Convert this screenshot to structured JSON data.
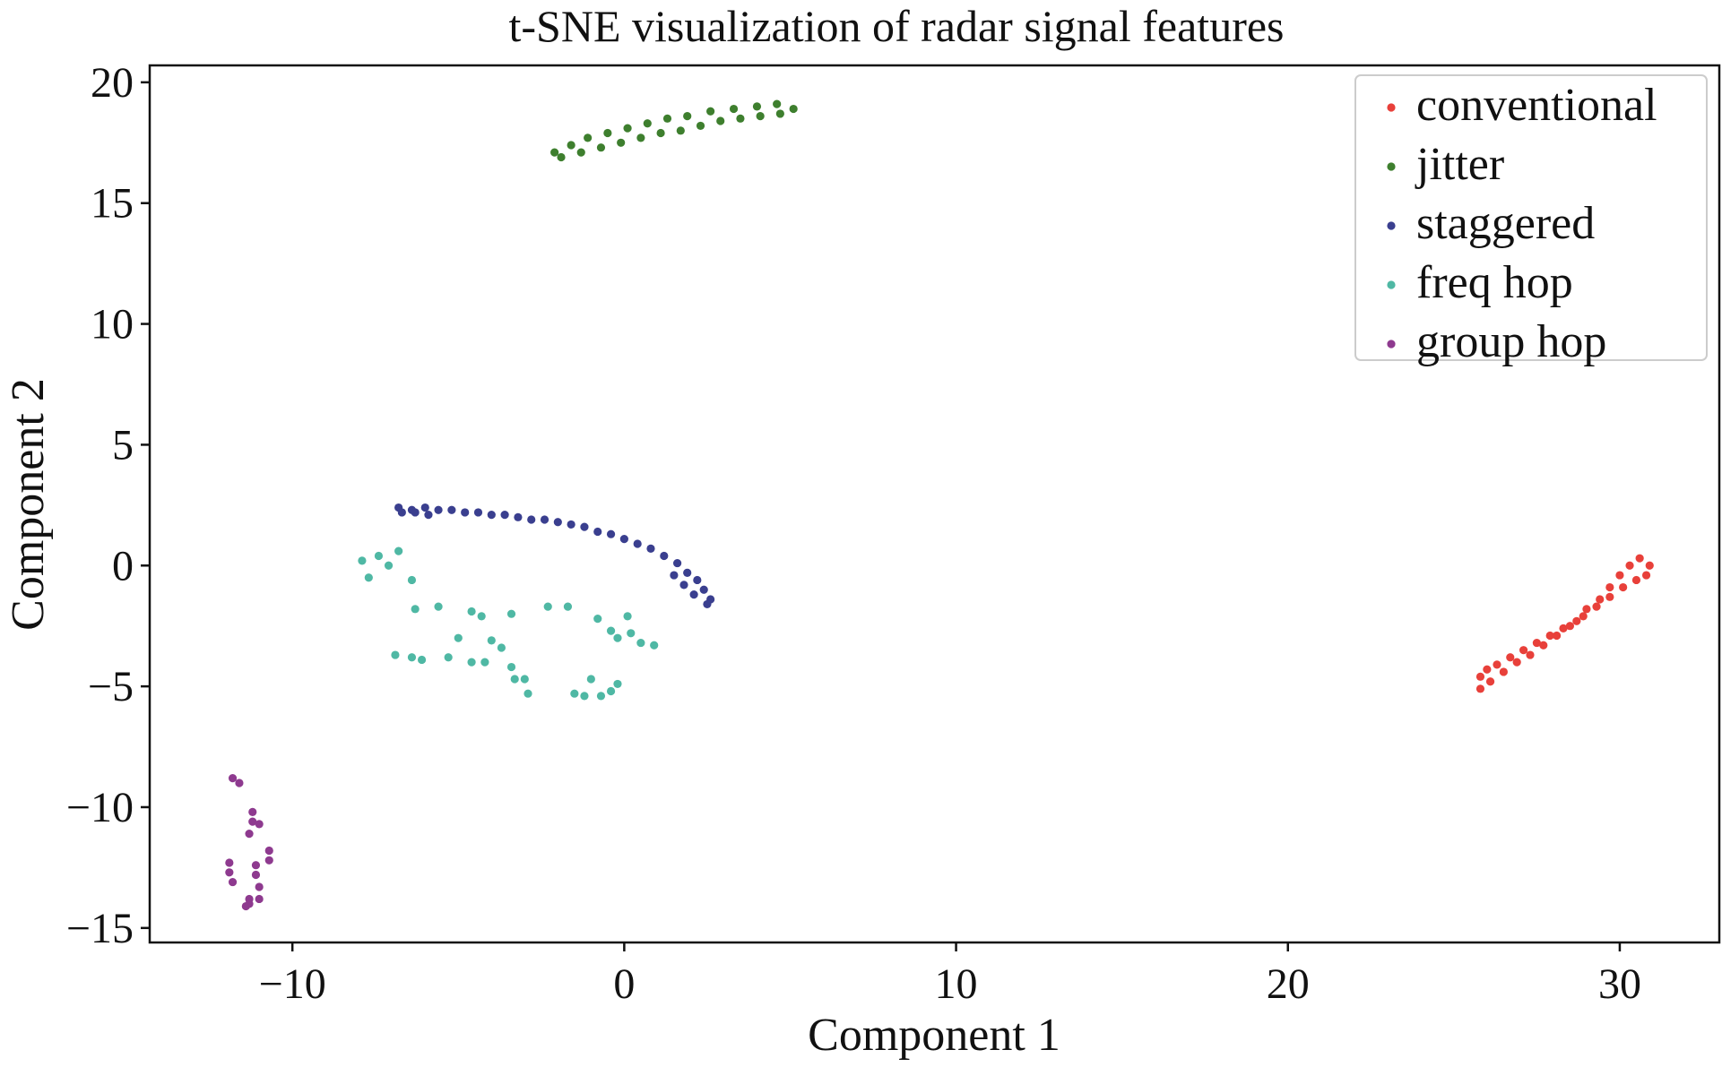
{
  "chart_data": {
    "type": "scatter",
    "title": "t-SNE visualization of radar signal features",
    "xlabel": "Component 1",
    "ylabel": "Component 2",
    "xlim": [
      -14.3,
      33
    ],
    "ylim": [
      -15.6,
      20.7
    ],
    "xticks": [
      -10,
      0,
      10,
      20,
      30
    ],
    "yticks": [
      -15,
      -10,
      -5,
      0,
      5,
      10,
      15,
      20
    ],
    "xtick_labels": [
      "−10",
      "0",
      "10",
      "20",
      "30"
    ],
    "ytick_labels": [
      "−15",
      "−10",
      "−5",
      "0",
      "5",
      "10",
      "15",
      "20"
    ],
    "grid": false,
    "legend_position": "top-right",
    "series": [
      {
        "name": "conventional",
        "color": "#e8403a",
        "points": [
          [
            25.8,
            -4.6
          ],
          [
            26.0,
            -4.3
          ],
          [
            26.3,
            -4.1
          ],
          [
            26.7,
            -3.8
          ],
          [
            27.1,
            -3.5
          ],
          [
            27.5,
            -3.2
          ],
          [
            27.9,
            -2.9
          ],
          [
            28.3,
            -2.6
          ],
          [
            28.7,
            -2.3
          ],
          [
            29.0,
            -1.8
          ],
          [
            29.4,
            -1.4
          ],
          [
            29.7,
            -0.9
          ],
          [
            30.0,
            -0.4
          ],
          [
            30.3,
            0.0
          ],
          [
            30.6,
            0.3
          ],
          [
            30.9,
            0.0
          ],
          [
            30.8,
            -0.4
          ],
          [
            30.5,
            -0.6
          ],
          [
            30.1,
            -0.9
          ],
          [
            29.7,
            -1.3
          ],
          [
            29.3,
            -1.7
          ],
          [
            28.9,
            -2.1
          ],
          [
            28.5,
            -2.5
          ],
          [
            28.1,
            -2.9
          ],
          [
            27.7,
            -3.3
          ],
          [
            27.3,
            -3.7
          ],
          [
            26.9,
            -4.0
          ],
          [
            26.5,
            -4.4
          ],
          [
            26.1,
            -4.8
          ],
          [
            25.8,
            -5.1
          ]
        ]
      },
      {
        "name": "jitter",
        "color": "#3e7f2e",
        "points": [
          [
            -2.1,
            17.1
          ],
          [
            -1.6,
            17.4
          ],
          [
            -1.1,
            17.7
          ],
          [
            -0.5,
            17.9
          ],
          [
            0.1,
            18.1
          ],
          [
            0.7,
            18.3
          ],
          [
            1.3,
            18.5
          ],
          [
            1.9,
            18.6
          ],
          [
            2.6,
            18.8
          ],
          [
            3.3,
            18.9
          ],
          [
            4.0,
            19.0
          ],
          [
            4.6,
            19.1
          ],
          [
            5.1,
            18.9
          ],
          [
            4.7,
            18.7
          ],
          [
            4.1,
            18.6
          ],
          [
            3.5,
            18.5
          ],
          [
            2.9,
            18.4
          ],
          [
            2.3,
            18.2
          ],
          [
            1.7,
            18.0
          ],
          [
            1.1,
            17.9
          ],
          [
            0.5,
            17.7
          ],
          [
            -0.1,
            17.5
          ],
          [
            -0.7,
            17.3
          ],
          [
            -1.3,
            17.1
          ],
          [
            -1.9,
            16.9
          ]
        ]
      },
      {
        "name": "staggered",
        "color": "#3a3f8f",
        "points": [
          [
            -6.8,
            2.4
          ],
          [
            -6.4,
            2.3
          ],
          [
            -6.0,
            2.4
          ],
          [
            -5.6,
            2.3
          ],
          [
            -5.2,
            2.3
          ],
          [
            -4.8,
            2.2
          ],
          [
            -4.4,
            2.2
          ],
          [
            -4.0,
            2.1
          ],
          [
            -3.6,
            2.1
          ],
          [
            -3.2,
            2.0
          ],
          [
            -2.8,
            1.9
          ],
          [
            -2.4,
            1.9
          ],
          [
            -2.0,
            1.8
          ],
          [
            -1.6,
            1.7
          ],
          [
            -1.2,
            1.6
          ],
          [
            -0.8,
            1.4
          ],
          [
            -0.4,
            1.3
          ],
          [
            0.0,
            1.1
          ],
          [
            0.4,
            0.9
          ],
          [
            0.8,
            0.7
          ],
          [
            1.2,
            0.4
          ],
          [
            1.6,
            0.1
          ],
          [
            1.9,
            -0.3
          ],
          [
            2.2,
            -0.6
          ],
          [
            2.4,
            -1.0
          ],
          [
            2.6,
            -1.4
          ],
          [
            2.5,
            -1.6
          ],
          [
            2.1,
            -1.2
          ],
          [
            1.8,
            -0.8
          ],
          [
            1.5,
            -0.4
          ],
          [
            -6.7,
            2.2
          ],
          [
            -6.3,
            2.2
          ],
          [
            -5.9,
            2.1
          ]
        ]
      },
      {
        "name": "freq hop",
        "color": "#4fb8a4",
        "points": [
          [
            -7.9,
            0.2
          ],
          [
            -7.7,
            -0.5
          ],
          [
            -7.4,
            0.4
          ],
          [
            -7.1,
            0.0
          ],
          [
            -6.8,
            0.6
          ],
          [
            -6.4,
            -0.6
          ],
          [
            -6.3,
            -1.8
          ],
          [
            -5.6,
            -1.7
          ],
          [
            -5.0,
            -3.0
          ],
          [
            -4.6,
            -1.9
          ],
          [
            -4.3,
            -2.1
          ],
          [
            -4.0,
            -3.1
          ],
          [
            -3.7,
            -3.4
          ],
          [
            -3.4,
            -4.2
          ],
          [
            -3.0,
            -4.7
          ],
          [
            -2.9,
            -5.3
          ],
          [
            -3.3,
            -4.7
          ],
          [
            -4.2,
            -4.0
          ],
          [
            -4.6,
            -4.0
          ],
          [
            -5.3,
            -3.8
          ],
          [
            -6.1,
            -3.9
          ],
          [
            -6.4,
            -3.8
          ],
          [
            -6.9,
            -3.7
          ],
          [
            -3.4,
            -2.0
          ],
          [
            -2.3,
            -1.7
          ],
          [
            -1.7,
            -1.7
          ],
          [
            -1.5,
            -5.3
          ],
          [
            -1.2,
            -5.4
          ],
          [
            -1.0,
            -4.7
          ],
          [
            -0.7,
            -5.4
          ],
          [
            -0.4,
            -5.2
          ],
          [
            -0.2,
            -4.9
          ],
          [
            -0.8,
            -2.2
          ],
          [
            -0.4,
            -2.7
          ],
          [
            -0.2,
            -3.0
          ],
          [
            0.1,
            -2.1
          ],
          [
            0.2,
            -2.8
          ],
          [
            0.5,
            -3.2
          ],
          [
            0.9,
            -3.3
          ]
        ]
      },
      {
        "name": "group hop",
        "color": "#8e3a8f",
        "points": [
          [
            -11.8,
            -8.8
          ],
          [
            -11.6,
            -9.0
          ],
          [
            -11.2,
            -10.2
          ],
          [
            -11.2,
            -10.6
          ],
          [
            -11.3,
            -11.1
          ],
          [
            -11.0,
            -10.7
          ],
          [
            -10.7,
            -11.8
          ],
          [
            -10.7,
            -12.2
          ],
          [
            -11.1,
            -12.4
          ],
          [
            -11.1,
            -12.8
          ],
          [
            -11.9,
            -12.3
          ],
          [
            -11.9,
            -12.7
          ],
          [
            -11.8,
            -13.1
          ],
          [
            -11.0,
            -13.3
          ],
          [
            -11.0,
            -13.8
          ],
          [
            -11.3,
            -13.8
          ],
          [
            -11.4,
            -14.1
          ],
          [
            -11.3,
            -14.0
          ]
        ]
      }
    ]
  }
}
